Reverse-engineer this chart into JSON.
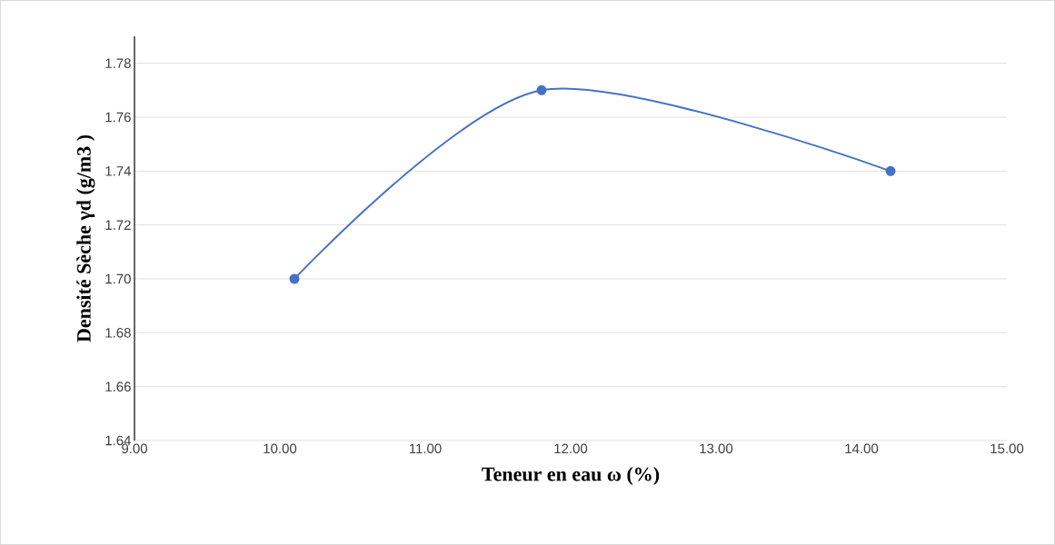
{
  "chart_data": {
    "type": "line",
    "xlabel": "Teneur en eau ω (%)",
    "ylabel": "Densité Sèche γd (g/m3 )",
    "x": [
      10.1,
      11.8,
      14.2
    ],
    "series": [
      {
        "color": "#4472c4",
        "values": [
          1.7,
          1.77,
          1.74
        ]
      }
    ],
    "xlim": [
      9,
      15
    ],
    "xticks": [
      {
        "value": 9,
        "label": "9.00"
      },
      {
        "value": 10,
        "label": "10.00"
      },
      {
        "value": 11,
        "label": "11.00"
      },
      {
        "value": 12,
        "label": "12.00"
      },
      {
        "value": 13,
        "label": "13.00"
      },
      {
        "value": 14,
        "label": "14.00"
      },
      {
        "value": 15,
        "label": "15.00"
      }
    ],
    "ylim": [
      1.64,
      1.79
    ],
    "yticks": [
      {
        "value": 1.64,
        "label": "1.64"
      },
      {
        "value": 1.66,
        "label": "1.66"
      },
      {
        "value": 1.68,
        "label": "1.68"
      },
      {
        "value": 1.7,
        "label": "1.70"
      },
      {
        "value": 1.72,
        "label": "1.72"
      },
      {
        "value": 1.74,
        "label": "1.74"
      },
      {
        "value": 1.76,
        "label": "1.76"
      },
      {
        "value": 1.78,
        "label": "1.78"
      }
    ],
    "grid": "y",
    "marker": "circle",
    "line_style": "solid"
  }
}
